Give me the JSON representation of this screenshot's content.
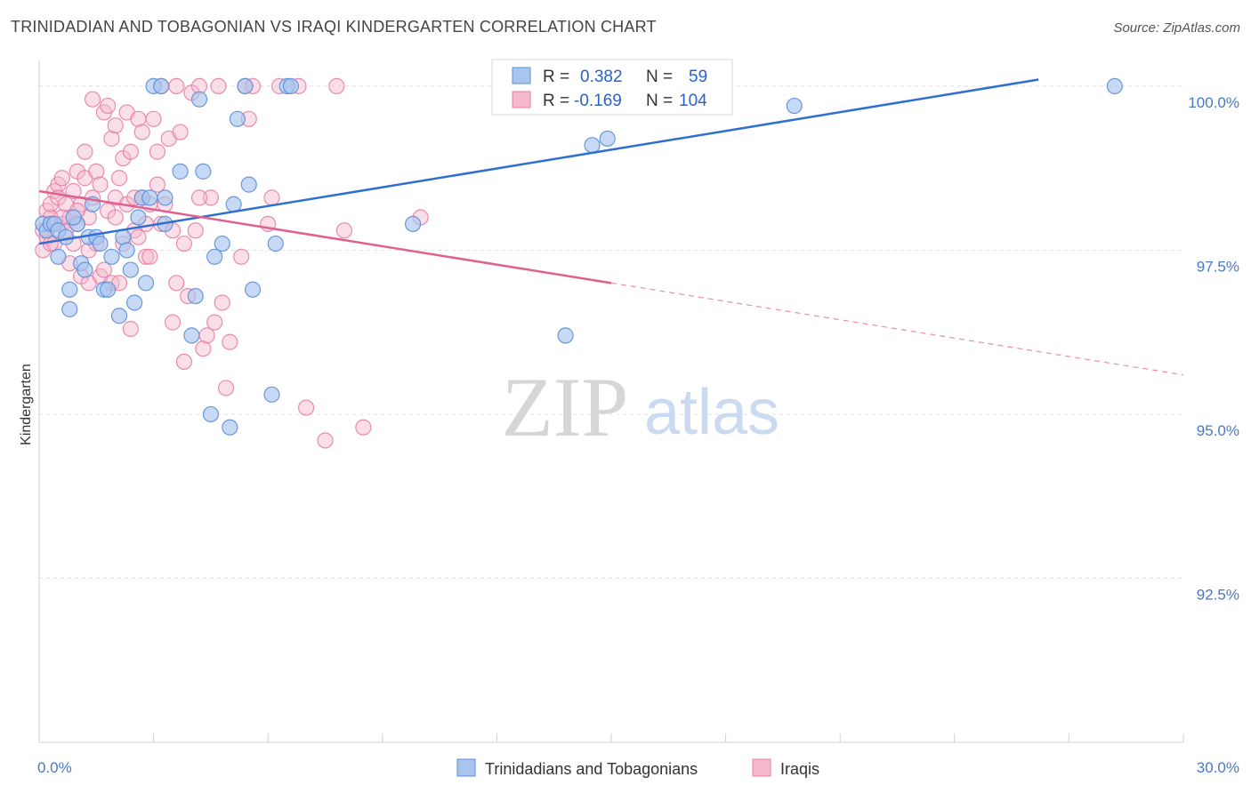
{
  "title": "TRINIDADIAN AND TOBAGONIAN VS IRAQI KINDERGARTEN CORRELATION CHART",
  "source": "Source: ZipAtlas.com",
  "chart_data": {
    "type": "scatter",
    "ylabel": "Kindergarten",
    "xlim": [
      0.0,
      30.0
    ],
    "ylim": [
      90.0,
      100.5
    ],
    "x_tick_labels": [
      "0.0%",
      "30.0%"
    ],
    "y_ticks": [
      {
        "value": 100.0,
        "label": "100.0%"
      },
      {
        "value": 97.5,
        "label": "97.5%"
      },
      {
        "value": 95.0,
        "label": "95.0%"
      },
      {
        "value": 92.5,
        "label": "92.5%"
      }
    ],
    "legend_stats": [
      {
        "r_label": "R =",
        "r_value": "0.382",
        "n_label": "N =",
        "n_value": "59"
      },
      {
        "r_label": "R =",
        "r_value": "-0.169",
        "n_label": "N =",
        "n_value": "104"
      }
    ],
    "watermark": {
      "part1": "ZIP",
      "part2": "atlas"
    },
    "series": [
      {
        "name": "Trinidadians and Tobagonians",
        "color": "#5b8fd9",
        "fill": "#a9c4ef",
        "trend": {
          "x": [
            0.0,
            26.2
          ],
          "y": [
            97.6,
            100.1
          ]
        },
        "points": [
          [
            0.1,
            97.9
          ],
          [
            0.2,
            97.8
          ],
          [
            0.3,
            97.9
          ],
          [
            0.4,
            97.9
          ],
          [
            0.5,
            97.8
          ],
          [
            0.5,
            97.4
          ],
          [
            0.7,
            97.7
          ],
          [
            0.8,
            96.9
          ],
          [
            0.8,
            96.6
          ],
          [
            1.0,
            97.9
          ],
          [
            1.1,
            97.3
          ],
          [
            1.2,
            97.2
          ],
          [
            1.3,
            97.7
          ],
          [
            1.4,
            98.2
          ],
          [
            1.5,
            97.7
          ],
          [
            1.6,
            97.6
          ],
          [
            1.7,
            96.9
          ],
          [
            1.8,
            96.9
          ],
          [
            1.9,
            97.4
          ],
          [
            2.1,
            96.5
          ],
          [
            2.2,
            97.7
          ],
          [
            2.3,
            97.5
          ],
          [
            2.4,
            97.2
          ],
          [
            2.5,
            96.7
          ],
          [
            2.6,
            98.0
          ],
          [
            2.7,
            98.3
          ],
          [
            2.8,
            97.0
          ],
          [
            2.9,
            98.3
          ],
          [
            3.0,
            100.0
          ],
          [
            3.2,
            100.0
          ],
          [
            3.3,
            98.3
          ],
          [
            3.3,
            97.9
          ],
          [
            3.7,
            98.7
          ],
          [
            4.0,
            96.2
          ],
          [
            4.1,
            96.8
          ],
          [
            4.2,
            99.8
          ],
          [
            4.3,
            98.7
          ],
          [
            4.5,
            95.0
          ],
          [
            4.6,
            97.4
          ],
          [
            4.8,
            97.6
          ],
          [
            5.0,
            94.8
          ],
          [
            5.1,
            98.2
          ],
          [
            5.2,
            99.5
          ],
          [
            5.4,
            100.0
          ],
          [
            5.5,
            98.5
          ],
          [
            5.6,
            96.9
          ],
          [
            6.1,
            95.3
          ],
          [
            6.2,
            97.6
          ],
          [
            6.5,
            100.0
          ],
          [
            6.6,
            100.0
          ],
          [
            9.8,
            97.9
          ],
          [
            13.0,
            100.0
          ],
          [
            13.7,
            100.0
          ],
          [
            13.8,
            96.2
          ],
          [
            14.5,
            99.1
          ],
          [
            14.9,
            99.2
          ],
          [
            19.8,
            99.7
          ],
          [
            28.2,
            100.0
          ],
          [
            0.9,
            98.0
          ]
        ]
      },
      {
        "name": "Iraqis",
        "color": "#e77fa4",
        "fill": "#f4b9cd",
        "trend": {
          "x": [
            0.0,
            15.0
          ],
          "y": [
            98.4,
            97.0
          ]
        },
        "trend_extension": {
          "x": [
            15.0,
            30.0
          ],
          "y": [
            97.0,
            95.6
          ]
        },
        "points": [
          [
            0.1,
            97.5
          ],
          [
            0.1,
            97.8
          ],
          [
            0.2,
            98.1
          ],
          [
            0.2,
            97.7
          ],
          [
            0.3,
            98.0
          ],
          [
            0.3,
            98.2
          ],
          [
            0.4,
            98.4
          ],
          [
            0.4,
            97.6
          ],
          [
            0.5,
            98.5
          ],
          [
            0.5,
            98.3
          ],
          [
            0.6,
            98.6
          ],
          [
            0.6,
            97.9
          ],
          [
            0.7,
            98.2
          ],
          [
            0.7,
            97.8
          ],
          [
            0.8,
            98.0
          ],
          [
            0.8,
            97.3
          ],
          [
            0.9,
            97.6
          ],
          [
            0.9,
            98.4
          ],
          [
            1.0,
            98.7
          ],
          [
            1.0,
            97.9
          ],
          [
            1.1,
            98.2
          ],
          [
            1.1,
            97.1
          ],
          [
            1.2,
            98.6
          ],
          [
            1.2,
            99.0
          ],
          [
            1.3,
            98.0
          ],
          [
            1.3,
            97.5
          ],
          [
            1.4,
            98.3
          ],
          [
            1.4,
            99.8
          ],
          [
            1.5,
            97.6
          ],
          [
            1.5,
            98.7
          ],
          [
            1.6,
            97.1
          ],
          [
            1.6,
            98.5
          ],
          [
            1.7,
            99.6
          ],
          [
            1.7,
            97.2
          ],
          [
            1.8,
            98.1
          ],
          [
            1.8,
            99.7
          ],
          [
            1.9,
            99.2
          ],
          [
            1.9,
            97.0
          ],
          [
            2.0,
            98.3
          ],
          [
            2.0,
            99.4
          ],
          [
            2.1,
            98.6
          ],
          [
            2.1,
            97.0
          ],
          [
            2.2,
            98.9
          ],
          [
            2.2,
            97.6
          ],
          [
            2.3,
            99.6
          ],
          [
            2.3,
            98.2
          ],
          [
            2.4,
            99.0
          ],
          [
            2.4,
            96.3
          ],
          [
            2.5,
            98.3
          ],
          [
            2.5,
            97.8
          ],
          [
            2.6,
            99.5
          ],
          [
            2.6,
            97.7
          ],
          [
            2.7,
            98.3
          ],
          [
            2.7,
            99.3
          ],
          [
            2.8,
            97.4
          ],
          [
            2.8,
            97.9
          ],
          [
            2.9,
            98.2
          ],
          [
            3.0,
            99.5
          ],
          [
            3.1,
            98.5
          ],
          [
            3.1,
            99.0
          ],
          [
            3.2,
            97.9
          ],
          [
            3.2,
            100.0
          ],
          [
            3.3,
            98.2
          ],
          [
            3.4,
            99.2
          ],
          [
            3.5,
            96.4
          ],
          [
            3.5,
            97.8
          ],
          [
            3.6,
            100.0
          ],
          [
            3.7,
            99.3
          ],
          [
            3.8,
            97.6
          ],
          [
            3.9,
            96.8
          ],
          [
            4.0,
            99.9
          ],
          [
            4.1,
            97.8
          ],
          [
            4.2,
            100.0
          ],
          [
            4.3,
            96.0
          ],
          [
            4.4,
            96.2
          ],
          [
            4.5,
            98.3
          ],
          [
            4.6,
            96.4
          ],
          [
            4.7,
            100.0
          ],
          [
            4.8,
            96.7
          ],
          [
            4.9,
            95.4
          ],
          [
            5.0,
            96.1
          ],
          [
            5.3,
            97.4
          ],
          [
            5.4,
            100.0
          ],
          [
            5.5,
            99.5
          ],
          [
            5.6,
            100.0
          ],
          [
            6.1,
            98.3
          ],
          [
            6.3,
            100.0
          ],
          [
            6.8,
            100.0
          ],
          [
            7.0,
            95.1
          ],
          [
            7.5,
            94.6
          ],
          [
            7.8,
            100.0
          ],
          [
            8.0,
            97.8
          ],
          [
            8.5,
            94.8
          ],
          [
            10.0,
            98.0
          ],
          [
            6.0,
            97.9
          ],
          [
            3.8,
            95.8
          ],
          [
            2.0,
            98.0
          ],
          [
            1.0,
            98.1
          ],
          [
            0.6,
            98.0
          ],
          [
            0.3,
            97.6
          ],
          [
            2.9,
            97.4
          ],
          [
            1.3,
            97.0
          ],
          [
            3.6,
            97.0
          ],
          [
            4.2,
            98.3
          ]
        ]
      }
    ],
    "grid": true
  }
}
